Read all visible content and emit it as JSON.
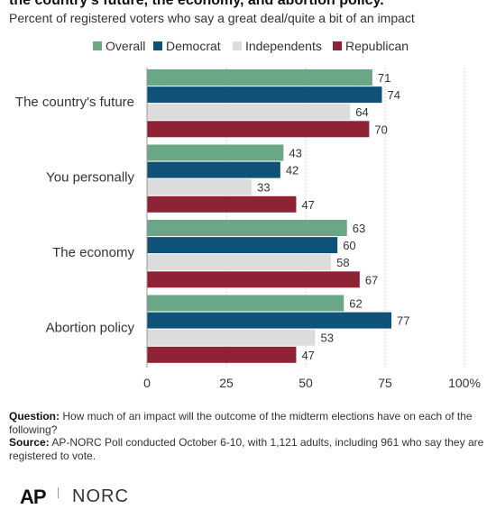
{
  "title": "the country's future, the economy, and abortion policy.",
  "subtitle": "Percent of registered voters who say a great deal/quite a bit of an impact",
  "chart_data": {
    "type": "bar",
    "orientation": "horizontal",
    "categories": [
      "The country's future",
      "You personally",
      "The economy",
      "Abortion policy"
    ],
    "series": [
      {
        "name": "Overall",
        "color": "#6aa786",
        "values": [
          71,
          43,
          63,
          62
        ]
      },
      {
        "name": "Democrat",
        "color": "#0f5278",
        "values": [
          74,
          42,
          60,
          77
        ]
      },
      {
        "name": "Independents",
        "color": "#dcdcdc",
        "values": [
          64,
          33,
          58,
          53
        ]
      },
      {
        "name": "Republican",
        "color": "#8f2235",
        "values": [
          70,
          47,
          67,
          47
        ]
      }
    ],
    "xlim": [
      0,
      100
    ],
    "ticks": [
      0,
      25,
      50,
      75,
      100
    ],
    "tick_labels": [
      "0",
      "25",
      "50",
      "75",
      "100%"
    ],
    "grid": true,
    "legend_position": "top"
  },
  "notes": {
    "question_label": "Question:",
    "question_text": "How much of an impact will the outcome of the midterm elections have on each of the following?",
    "source_label": "Source:",
    "source_text": "AP-NORC Poll conducted October 6-10, with 1,121 adults, including 961 who say they are registered to vote."
  },
  "logos": {
    "ap": "AP",
    "norc": "NORC"
  }
}
